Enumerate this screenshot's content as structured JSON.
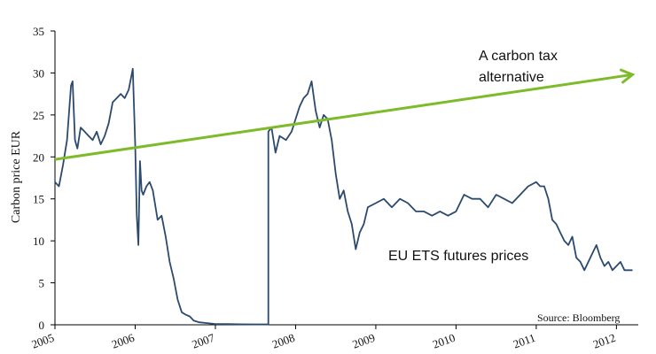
{
  "chart_data": {
    "type": "line",
    "ylabel": "Carbon price EUR",
    "ylim": [
      0,
      35
    ],
    "xlim": [
      2005.0,
      2012.25
    ],
    "y_ticks": [
      "0",
      "5",
      "10",
      "15",
      "20",
      "25",
      "30",
      "35"
    ],
    "x_ticks": [
      "2005",
      "2006",
      "2007",
      "2008",
      "2009",
      "2010",
      "2011",
      "2012"
    ],
    "grid": false,
    "annotations": {
      "tax_line_label": [
        "A carbon tax",
        "alternative"
      ],
      "ets_label": "EU ETS futures prices",
      "source": "Source: Bloomberg"
    },
    "colors": {
      "ets_series": "#2c4a6e",
      "tax_series": "#7dbb2a",
      "axis": "#000000"
    },
    "series": [
      {
        "name": "EU ETS futures prices",
        "x": [
          2005.0,
          2005.05,
          2005.1,
          2005.15,
          2005.2,
          2005.22,
          2005.25,
          2005.28,
          2005.32,
          2005.37,
          2005.42,
          2005.47,
          2005.52,
          2005.57,
          2005.62,
          2005.67,
          2005.72,
          2005.77,
          2005.82,
          2005.87,
          2005.92,
          2005.97,
          2006.0,
          2006.02,
          2006.04,
          2006.06,
          2006.08,
          2006.1,
          2006.14,
          2006.18,
          2006.22,
          2006.28,
          2006.33,
          2006.38,
          2006.43,
          2006.48,
          2006.53,
          2006.58,
          2006.63,
          2006.68,
          2006.73,
          2006.8,
          2006.9,
          2007.0,
          2007.15,
          2007.3,
          2007.45,
          2007.6,
          2007.66,
          2007.66,
          2007.7,
          2007.75,
          2007.8,
          2007.88,
          2007.95,
          2008.0,
          2008.05,
          2008.1,
          2008.15,
          2008.2,
          2008.25,
          2008.3,
          2008.35,
          2008.4,
          2008.45,
          2008.5,
          2008.55,
          2008.6,
          2008.65,
          2008.7,
          2008.75,
          2008.8,
          2008.85,
          2008.9,
          2009.0,
          2009.1,
          2009.2,
          2009.3,
          2009.4,
          2009.5,
          2009.6,
          2009.7,
          2009.8,
          2009.9,
          2010.0,
          2010.1,
          2010.2,
          2010.3,
          2010.4,
          2010.5,
          2010.6,
          2010.7,
          2010.8,
          2010.9,
          2011.0,
          2011.05,
          2011.1,
          2011.15,
          2011.2,
          2011.25,
          2011.3,
          2011.35,
          2011.4,
          2011.45,
          2011.5,
          2011.55,
          2011.6,
          2011.65,
          2011.7,
          2011.75,
          2011.8,
          2011.85,
          2011.9,
          2011.95,
          2012.0,
          2012.05,
          2012.1,
          2012.15,
          2012.2
        ],
        "values": [
          17,
          16.5,
          19,
          22,
          28.5,
          29,
          22,
          21,
          23.5,
          23,
          22.5,
          22,
          23,
          21.5,
          22.5,
          24,
          26.5,
          27,
          27.5,
          27,
          28,
          30.5,
          21.5,
          13,
          9.5,
          19.5,
          16,
          15.5,
          16.5,
          17,
          16,
          12.5,
          13,
          10.5,
          7.5,
          5.5,
          3,
          1.5,
          1.2,
          1.0,
          0.5,
          0.3,
          0.2,
          0.1,
          0.08,
          0.06,
          0.05,
          0.05,
          0.05,
          23,
          23.5,
          20.5,
          22.5,
          22,
          23,
          24.5,
          26,
          27,
          27.5,
          29,
          25.5,
          23.5,
          25,
          24.5,
          22,
          18,
          15,
          16,
          13.5,
          12,
          9,
          11,
          12,
          14,
          14.5,
          15,
          14,
          15,
          14.5,
          13.5,
          13.5,
          13,
          13.5,
          13,
          13.5,
          15.5,
          15,
          15,
          14,
          15.5,
          15,
          14.5,
          15.5,
          16.5,
          17,
          16.5,
          16.5,
          15,
          12.5,
          12,
          11,
          10,
          9.5,
          10.5,
          8,
          7.5,
          6.5,
          7.5,
          8.5,
          9.5,
          8,
          7,
          7.5,
          6.5,
          7,
          7.5,
          6.5,
          6.5,
          6.5
        ]
      },
      {
        "name": "A carbon tax alternative",
        "x": [
          2005.0,
          2012.2
        ],
        "values": [
          19.7,
          29.8
        ]
      }
    ]
  }
}
